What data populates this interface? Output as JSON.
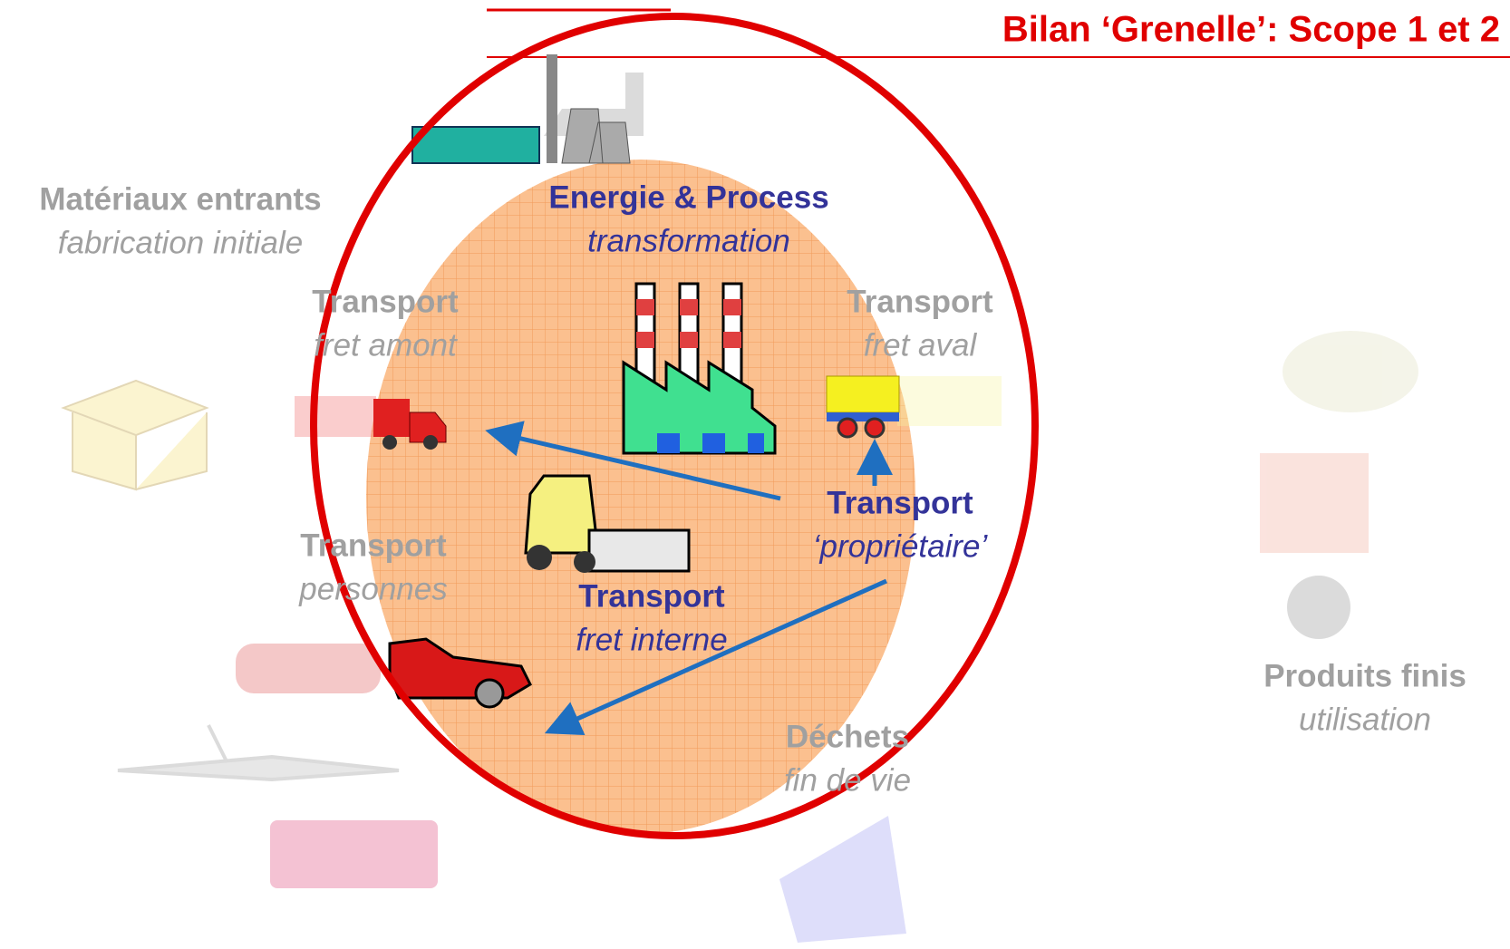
{
  "title": "Bilan ‘Grenelle’: Scope 1 et 2",
  "nodes": [
    {
      "label": "Matériaux entrants",
      "sublabel": "fabrication initiale"
    },
    {
      "label": "Energie & Process",
      "sublabel": "transformation"
    },
    {
      "label": "Transport",
      "sublabel": "fret amont"
    },
    {
      "label": "Transport",
      "sublabel": "fret aval"
    },
    {
      "label": "Transport",
      "sublabel": "‘propriétaire’"
    },
    {
      "label": "Transport",
      "sublabel": "personnes"
    },
    {
      "label": "Transport",
      "sublabel": "fret interne"
    },
    {
      "label": "Déchets",
      "sublabel": "fin de vie"
    },
    {
      "label": "Produits finis",
      "sublabel": "utilisation"
    }
  ]
}
